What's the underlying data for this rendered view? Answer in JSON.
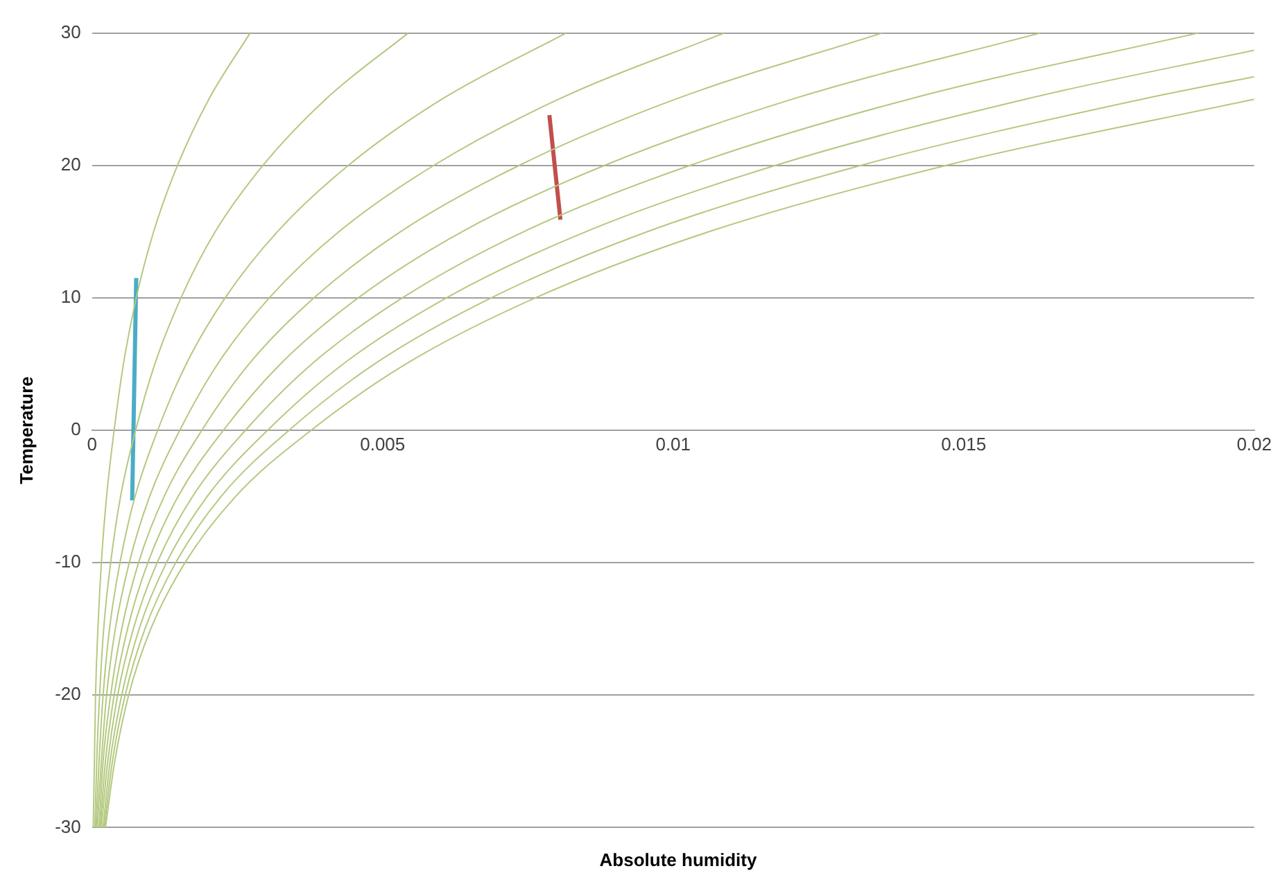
{
  "chart_data": {
    "type": "line",
    "xlabel": "Absolute humidity",
    "ylabel": "Temperature",
    "xlim": [
      0,
      0.02
    ],
    "xticks": [
      0,
      0.005,
      0.01,
      0.015,
      0.02
    ],
    "ylim": [
      -30,
      30
    ],
    "yticks": [
      -30,
      -20,
      -10,
      0,
      10,
      20,
      30
    ],
    "grid": "y",
    "legend": false,
    "marker": "none",
    "line_style": "solid",
    "series": [
      {
        "color": "#b3c97f",
        "x": [
          2e-05,
          4e-05,
          6e-05,
          0.0001,
          0.00016,
          0.00025,
          0.00038,
          0.00054,
          0.00076,
          0.00106,
          0.00147,
          0.00201,
          0.00272
        ],
        "values": [
          -30,
          -25,
          -20,
          -15,
          -10,
          -5,
          0,
          5,
          10,
          15,
          20,
          25,
          30
        ]
      },
      {
        "color": "#b3c97f",
        "x": [
          5e-05,
          8e-05,
          0.00013,
          0.0002,
          0.00032,
          0.00049,
          0.00075,
          0.00108,
          0.00153,
          0.00212,
          0.00294,
          0.00402,
          0.00544
        ],
        "values": [
          -30,
          -25,
          -20,
          -15,
          -10,
          -5,
          0,
          5,
          10,
          15,
          20,
          25,
          30
        ]
      },
      {
        "color": "#b3c97f",
        "x": [
          7e-05,
          0.00012,
          0.00019,
          0.0003,
          0.00048,
          0.00074,
          0.00113,
          0.00162,
          0.00229,
          0.00319,
          0.00441,
          0.00602,
          0.00816
        ],
        "values": [
          -30,
          -25,
          -20,
          -15,
          -10,
          -5,
          0,
          5,
          10,
          15,
          20,
          25,
          30
        ]
      },
      {
        "color": "#b3c97f",
        "x": [
          9e-05,
          0.00016,
          0.00025,
          0.0004,
          0.00064,
          0.00099,
          0.00151,
          0.00216,
          0.00305,
          0.00425,
          0.00588,
          0.00803,
          0.01088
        ],
        "values": [
          -30,
          -25,
          -20,
          -15,
          -10,
          -5,
          0,
          5,
          10,
          15,
          20,
          25,
          30
        ]
      },
      {
        "color": "#b3c97f",
        "x": [
          0.00012,
          0.00019,
          0.00032,
          0.00051,
          0.0008,
          0.00124,
          0.00189,
          0.0027,
          0.00382,
          0.00531,
          0.00735,
          0.01004,
          0.0136
        ],
        "values": [
          -30,
          -25,
          -20,
          -15,
          -10,
          -5,
          0,
          5,
          10,
          15,
          20,
          25,
          30
        ]
      },
      {
        "color": "#b3c97f",
        "x": [
          0.00014,
          0.00023,
          0.00038,
          0.00061,
          0.00096,
          0.00148,
          0.00226,
          0.00324,
          0.00458,
          0.00637,
          0.00882,
          0.01205,
          0.01632
        ],
        "values": [
          -30,
          -25,
          -20,
          -15,
          -10,
          -5,
          0,
          5,
          10,
          15,
          20,
          25,
          30
        ]
      },
      {
        "color": "#b3c97f",
        "x": [
          0.00016,
          0.00027,
          0.00044,
          0.00071,
          0.00112,
          0.00173,
          0.00264,
          0.00378,
          0.00534,
          0.00743,
          0.01029,
          0.01406,
          0.01904
        ],
        "values": [
          -30,
          -25,
          -20,
          -15,
          -10,
          -5,
          0,
          5,
          10,
          15,
          20,
          25,
          30
        ]
      },
      {
        "color": "#b3c97f",
        "x": [
          0.00019,
          0.00031,
          0.00051,
          0.00081,
          0.00128,
          0.00198,
          0.00302,
          0.00432,
          0.0061,
          0.0085,
          0.01176,
          0.01606,
          0.02
        ],
        "values": [
          -30,
          -25,
          -20,
          -15,
          -10,
          -5,
          0,
          5,
          10,
          15,
          20,
          25,
          28.7
        ]
      },
      {
        "color": "#b3c97f",
        "x": [
          0.00021,
          0.00035,
          0.00057,
          0.00091,
          0.00144,
          0.00222,
          0.00339,
          0.00486,
          0.00687,
          0.00956,
          0.01323,
          0.01807,
          0.02
        ],
        "values": [
          -30,
          -25,
          -20,
          -15,
          -10,
          -5,
          0,
          5,
          10,
          15,
          20,
          25,
          26.7
        ]
      },
      {
        "color": "#b3c97f",
        "x": [
          0.00023,
          0.00039,
          0.00063,
          0.00101,
          0.0016,
          0.00247,
          0.00377,
          0.0054,
          0.00763,
          0.01062,
          0.0147,
          0.02
        ],
        "values": [
          -30,
          -25,
          -20,
          -15,
          -10,
          -5,
          0,
          5,
          10,
          15,
          20,
          25
        ]
      },
      {
        "color": "#4bacc6",
        "x": [
          0.00076,
          0.00069
        ],
        "values": [
          11.5,
          -5.3
        ]
      },
      {
        "color": "#c0504d",
        "x": [
          0.00787,
          0.00806
        ],
        "values": [
          23.8,
          15.9
        ]
      }
    ]
  }
}
